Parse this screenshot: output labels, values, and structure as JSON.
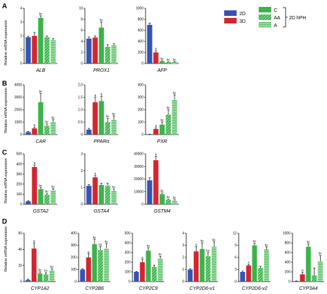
{
  "colors": {
    "2D": "#3653b3",
    "3D": "#d2262f",
    "C": "#3bb34a",
    "AA": "#3bb34a",
    "A": "#3bb34a"
  },
  "legend": {
    "items": [
      {
        "key": "2D",
        "label": "2D",
        "pattern": "solid"
      },
      {
        "key": "3D",
        "label": "3D",
        "pattern": "solid"
      },
      {
        "key": "C",
        "label": "C",
        "pattern": "solid"
      },
      {
        "key": "AA",
        "label": "AA",
        "pattern": "diagonal"
      },
      {
        "key": "A",
        "label": "A",
        "pattern": "horizontal"
      }
    ],
    "group_label": "2D hPH",
    "position": "top-right"
  },
  "ylabel": "Relative mRNA expression",
  "chart_data": [
    {
      "type": "bar",
      "panel": "A",
      "gene": "ALB",
      "categories": [
        "2D",
        "3D",
        "C",
        "AA",
        "A"
      ],
      "values": [
        1.9,
        2.0,
        3.3,
        1.9,
        1.7
      ],
      "errors": [
        0.08,
        0.25,
        0.15,
        0.1,
        0.1
      ],
      "labels": [
        "",
        "",
        "bc",
        "",
        ""
      ],
      "ylim": [
        0,
        4
      ],
      "yticks": [
        0,
        1,
        2,
        3,
        4
      ],
      "yticklabels": [
        "0",
        "1",
        "2",
        "3",
        "4"
      ]
    },
    {
      "type": "bar",
      "panel": "A",
      "gene": "PROX1",
      "categories": [
        "2D",
        "3D",
        "C",
        "AA",
        "A"
      ],
      "values": [
        4.5,
        4.7,
        6.5,
        3.0,
        3.3
      ],
      "errors": [
        0.3,
        0.3,
        1.0,
        0.4,
        0.3
      ],
      "labels": [
        "",
        "",
        "bc",
        "",
        ""
      ],
      "ylim": [
        0,
        10
      ],
      "yticks": [
        0,
        2,
        4,
        6,
        8,
        10
      ],
      "yticklabels": [
        "0",
        "2",
        "4",
        "6",
        "8",
        "10"
      ]
    },
    {
      "type": "bar",
      "panel": "A",
      "gene": "AFP",
      "categories": [
        "2D",
        "3D",
        "C",
        "AA",
        "A"
      ],
      "values": [
        700,
        200,
        40,
        25,
        25
      ],
      "errors": [
        30,
        30,
        10,
        5,
        5
      ],
      "labels": [
        "",
        "a",
        "bc",
        "bc",
        "bc"
      ],
      "ylim": [
        0,
        1000
      ],
      "yticks": [
        0,
        200,
        400,
        600,
        800,
        1000
      ],
      "yticklabels": [
        "0",
        "200",
        "400",
        "600",
        "800",
        "1000"
      ]
    },
    {
      "type": "bar",
      "panel": "B",
      "gene": "CAR",
      "categories": [
        "2D",
        "3D",
        "C",
        "AA",
        "A"
      ],
      "values": [
        200,
        500,
        2600,
        700,
        1000
      ],
      "errors": [
        50,
        100,
        700,
        150,
        200
      ],
      "labels": [
        "",
        "a",
        "bc",
        "bc",
        "bc"
      ],
      "ylim": [
        0,
        4000
      ],
      "yticks": [
        0,
        1000,
        2000,
        3000,
        4000
      ],
      "yticklabels": [
        "0",
        "1000",
        "2000",
        "3000",
        "4000"
      ]
    },
    {
      "type": "bar",
      "panel": "B",
      "gene": "PPARα",
      "categories": [
        "2D",
        "3D",
        "C",
        "AA",
        "A"
      ],
      "values": [
        0.2,
        1.3,
        1.35,
        0.5,
        0.6
      ],
      "errors": [
        0.05,
        0.2,
        0.2,
        0.15,
        0.15
      ],
      "labels": [
        "",
        "a",
        "a",
        "bc",
        "bc"
      ],
      "ylim": [
        0,
        2.0
      ],
      "yticks": [
        0,
        0.5,
        1.0,
        1.5,
        2.0
      ],
      "yticklabels": [
        "0",
        "0.5",
        "1.0",
        "1.5",
        "2.0"
      ]
    },
    {
      "type": "bar",
      "panel": "B",
      "gene": "PXR",
      "categories": [
        "2D",
        "3D",
        "C",
        "AA",
        "A"
      ],
      "values": [
        2,
        45,
        80,
        160,
        280
      ],
      "errors": [
        1,
        10,
        20,
        40,
        40
      ],
      "labels": [
        "",
        "a",
        "bc",
        "bc",
        "bc"
      ],
      "ylim": [
        0,
        400
      ],
      "yticks": [
        0,
        100,
        200,
        300,
        400
      ],
      "yticklabels": [
        "0",
        "100",
        "200",
        "300",
        "400"
      ]
    },
    {
      "type": "bar",
      "panel": "C",
      "gene": "GSTA2",
      "categories": [
        "2D",
        "3D",
        "C",
        "AA",
        "A"
      ],
      "values": [
        30,
        370,
        150,
        95,
        140
      ],
      "errors": [
        5,
        20,
        15,
        10,
        15
      ],
      "labels": [
        "",
        "a",
        "bc",
        "bc",
        "bc"
      ],
      "ylim": [
        0,
        500
      ],
      "yticks": [
        0,
        100,
        200,
        300,
        400,
        500
      ],
      "yticklabels": [
        "0",
        "100",
        "200",
        "300",
        "400",
        "500"
      ]
    },
    {
      "type": "bar",
      "panel": "C",
      "gene": "GSTA4",
      "categories": [
        "2D",
        "3D",
        "C",
        "AA",
        "A"
      ],
      "values": [
        1.1,
        1.6,
        1.15,
        1.1,
        0.8
      ],
      "errors": [
        0.08,
        0.1,
        0.1,
        0.15,
        0.1
      ],
      "labels": [
        "",
        "a",
        "",
        "",
        "bc"
      ],
      "ylim": [
        0,
        3
      ],
      "yticks": [
        0,
        1,
        2,
        3
      ],
      "yticklabels": [
        "0",
        "1",
        "2",
        "3"
      ]
    },
    {
      "type": "bar",
      "panel": "C",
      "gene": "GSTM4",
      "categories": [
        "2D",
        "3D",
        "C",
        "AA",
        "A"
      ],
      "values": [
        19000,
        35000,
        8000,
        3500,
        3000
      ],
      "errors": [
        2000,
        3000,
        1000,
        500,
        500
      ],
      "labels": [
        "",
        "a",
        "bc",
        "bc",
        "bc"
      ],
      "ylim": [
        0,
        40000
      ],
      "yticks": [
        0,
        10000,
        20000,
        30000,
        40000
      ],
      "yticklabels": [
        "0",
        "10000",
        "20000",
        "30000",
        "40000"
      ]
    },
    {
      "type": "bar",
      "panel": "D",
      "gene": "CYP1A2",
      "categories": [
        "2D",
        "3D",
        "C",
        "AA",
        "A"
      ],
      "values": [
        2,
        41,
        10,
        9,
        14
      ],
      "errors": [
        1,
        7,
        2,
        2,
        2
      ],
      "labels": [
        "",
        "a",
        "bc",
        "bc",
        "bc"
      ],
      "ylim": [
        0,
        60
      ],
      "yticks": [
        0,
        20,
        40,
        60
      ],
      "yticklabels": [
        "0",
        "20",
        "40",
        "60"
      ]
    },
    {
      "type": "bar",
      "panel": "D",
      "gene": "CYP2B6",
      "categories": [
        "2D",
        "3D",
        "C",
        "AA",
        "A"
      ],
      "values": [
        100,
        200,
        310,
        260,
        275
      ],
      "errors": [
        5,
        30,
        40,
        30,
        40
      ],
      "labels": [
        "",
        "a",
        "bc",
        "bc",
        "bc"
      ],
      "ylim": [
        0,
        400
      ],
      "yticks": [
        0,
        100,
        200,
        300,
        400
      ],
      "yticklabels": [
        "0",
        "100",
        "200",
        "300",
        "400"
      ]
    },
    {
      "type": "bar",
      "panel": "D",
      "gene": "CYP2C9",
      "categories": [
        "2D",
        "3D",
        "C",
        "AA",
        "A"
      ],
      "values": [
        100,
        200,
        320,
        150,
        240
      ],
      "errors": [
        5,
        30,
        30,
        20,
        20
      ],
      "labels": [
        "",
        "a",
        "bc",
        "",
        "bc"
      ],
      "ylim": [
        0,
        500
      ],
      "yticks": [
        0,
        100,
        200,
        300,
        400,
        500
      ],
      "yticklabels": [
        "0",
        "100",
        "200",
        "300",
        "400",
        "500"
      ]
    },
    {
      "type": "bar",
      "panel": "D",
      "gene": "CYP2D6-v1",
      "categories": [
        "2D",
        "3D",
        "C",
        "AA",
        "A"
      ],
      "values": [
        1.0,
        2.5,
        2.7,
        2.1,
        2.9
      ],
      "errors": [
        0.05,
        0.4,
        0.5,
        0.3,
        0.4
      ],
      "labels": [
        "",
        "a",
        "bc",
        "bc",
        "bc"
      ],
      "ylim": [
        0,
        4
      ],
      "yticks": [
        0,
        1,
        2,
        3,
        4
      ],
      "yticklabels": [
        "0",
        "1",
        "2",
        "3",
        "4"
      ]
    },
    {
      "type": "bar",
      "panel": "D",
      "gene": "CYP2D6-v2",
      "categories": [
        "2D",
        "3D",
        "C",
        "AA",
        "A"
      ],
      "values": [
        2.4,
        4.0,
        9.0,
        3.4,
        8.0
      ],
      "errors": [
        0.2,
        0.2,
        0.5,
        0.4,
        0.6
      ],
      "labels": [
        "",
        "a",
        "bc",
        "",
        "bc"
      ],
      "ylim": [
        0,
        12
      ],
      "yticks": [
        0,
        3,
        6,
        9,
        12
      ],
      "yticklabels": [
        "0",
        "3",
        "6",
        "9",
        "12"
      ]
    },
    {
      "type": "bar",
      "panel": "D",
      "gene": "CYP3A4",
      "categories": [
        "2D",
        "3D",
        "C",
        "AA",
        "A"
      ],
      "values": [
        10,
        150,
        720,
        130,
        420
      ],
      "errors": [
        3,
        40,
        60,
        150,
        120
      ],
      "labels": [
        "",
        "a",
        "bc",
        "",
        "bc"
      ],
      "ylim": [
        0,
        1000
      ],
      "yticks": [
        0,
        200,
        400,
        600,
        800,
        1000
      ],
      "yticklabels": [
        "0",
        "200",
        "400",
        "600",
        "800",
        "1000"
      ]
    }
  ]
}
